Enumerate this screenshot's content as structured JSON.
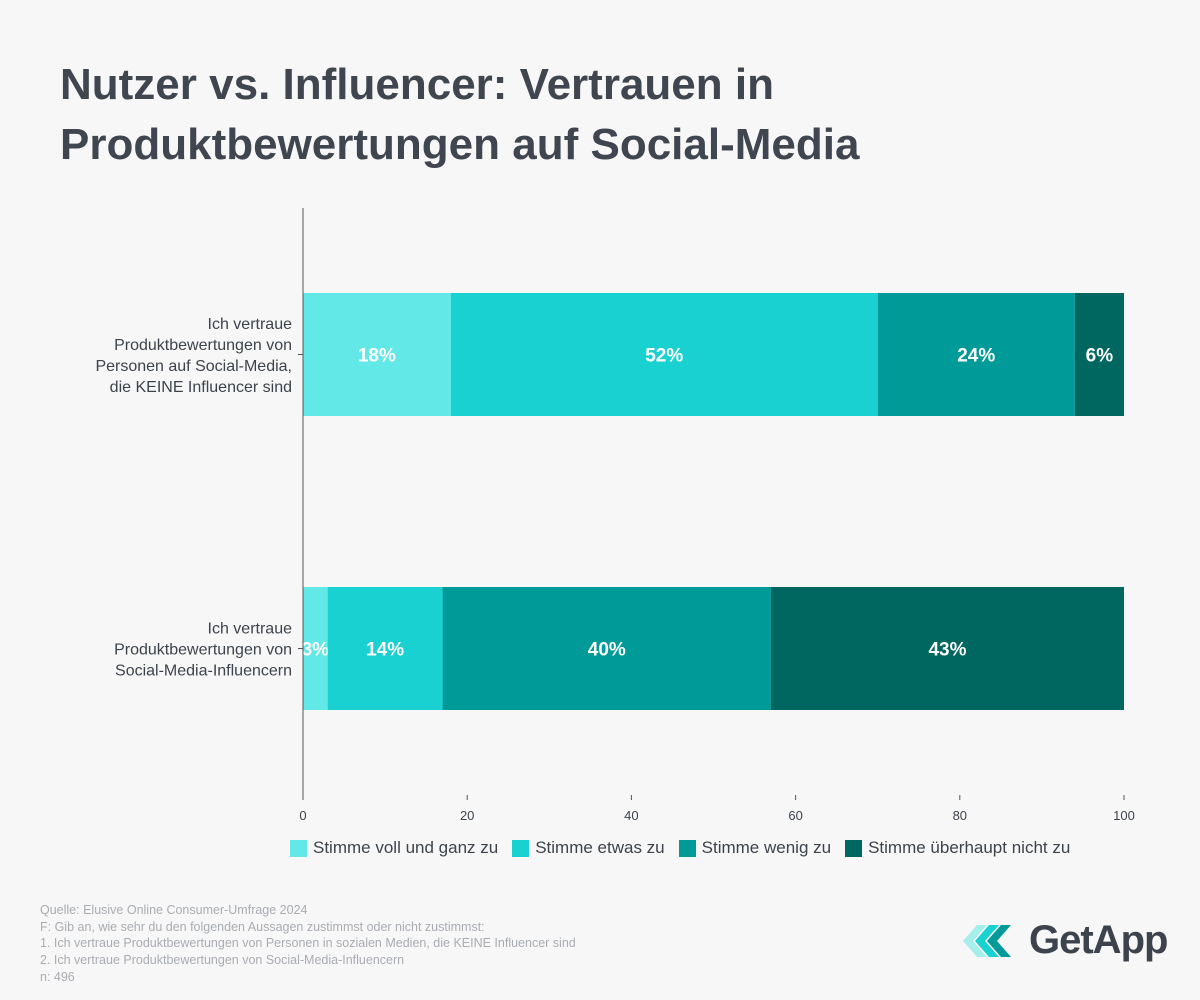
{
  "title": "Nutzer vs. Influencer: Vertrauen in Produktbewertungen auf Social-Media",
  "chart_data": {
    "type": "bar",
    "orientation": "horizontal",
    "stacked": true,
    "categories": [
      "Ich vertraue Produktbewertungen von Personen auf Social-Media, die KEINE Influencer sind",
      "Ich vertraue Produktbewertungen von Social-Media-Influencern"
    ],
    "category_lines": [
      [
        "Ich vertraue",
        "Produktbewertungen von",
        "Personen auf Social-Media,",
        "die KEINE Influencer sind"
      ],
      [
        "Ich vertraue",
        "Produktbewertungen von",
        "Social-Media-Influencern"
      ]
    ],
    "series": [
      {
        "name": "Stimme voll und ganz zu",
        "color": "#63e8e8",
        "values": [
          18,
          3
        ],
        "labels": [
          "18%",
          "3%"
        ]
      },
      {
        "name": "Stimme etwas zu",
        "color": "#1ad1d1",
        "values": [
          52,
          14
        ],
        "labels": [
          "52%",
          "14%"
        ]
      },
      {
        "name": "Stimme wenig zu",
        "color": "#009b98",
        "values": [
          24,
          40
        ],
        "labels": [
          "24%",
          "40%"
        ]
      },
      {
        "name": "Stimme überhaupt nicht zu",
        "color": "#006660",
        "values": [
          6,
          43
        ],
        "labels": [
          "6%",
          "43%"
        ]
      }
    ],
    "xlim": [
      0,
      100
    ],
    "xticks": [
      "0",
      "20",
      "40",
      "60",
      "80",
      "100"
    ],
    "grid": false,
    "legend_position": "bottom"
  },
  "footer": {
    "lines": [
      "Quelle: Elusive Online Consumer-Umfrage 2024",
      "F: Gib an, wie sehr du den folgenden Aussagen zustimmst oder nicht zustimmst:",
      "1. Ich vertraue Produktbewertungen von Personen in sozialen Medien, die KEINE Influencer sind",
      "2. Ich vertraue Produktbewertungen von Social-Media-Influencern",
      "n: 496"
    ]
  },
  "logo": {
    "text": "GetApp"
  }
}
